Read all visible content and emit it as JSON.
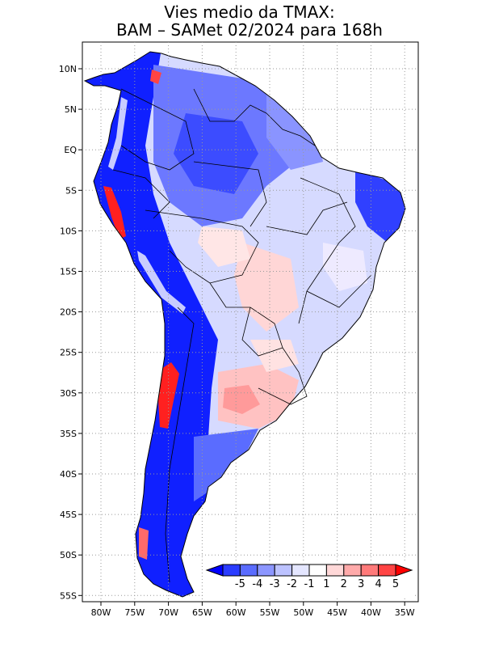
{
  "title": {
    "line1": "Vies medio da TMAX:",
    "line2": "BAM – SAMet 02/2024  para 168h"
  },
  "axes": {
    "lon_labels": [
      "80W",
      "75W",
      "70W",
      "65W",
      "60W",
      "55W",
      "50W",
      "45W",
      "40W",
      "35W"
    ],
    "lat_labels": [
      "10N",
      "5N",
      "EQ",
      "5S",
      "10S",
      "15S",
      "20S",
      "25S",
      "30S",
      "35S",
      "40S",
      "45S",
      "50S",
      "55S"
    ],
    "lon_range": [
      -83,
      -34
    ],
    "lat_range": [
      13,
      -56
    ]
  },
  "colorbar": {
    "labels": [
      "-5",
      "-4",
      "-3",
      "-2",
      "-1",
      "1",
      "2",
      "3",
      "4",
      "5"
    ],
    "colors": [
      "#0000ff",
      "#2a3cff",
      "#5a6cff",
      "#8c96ff",
      "#bcc2ff",
      "#e4e6ff",
      "#ffffff",
      "#ffd8d8",
      "#ffaaaa",
      "#ff7a7a",
      "#ff4444",
      "#ff0000"
    ]
  },
  "colors": {
    "ocean": "#ffffff",
    "grid": "#9a9a9a",
    "border": "#000000"
  }
}
